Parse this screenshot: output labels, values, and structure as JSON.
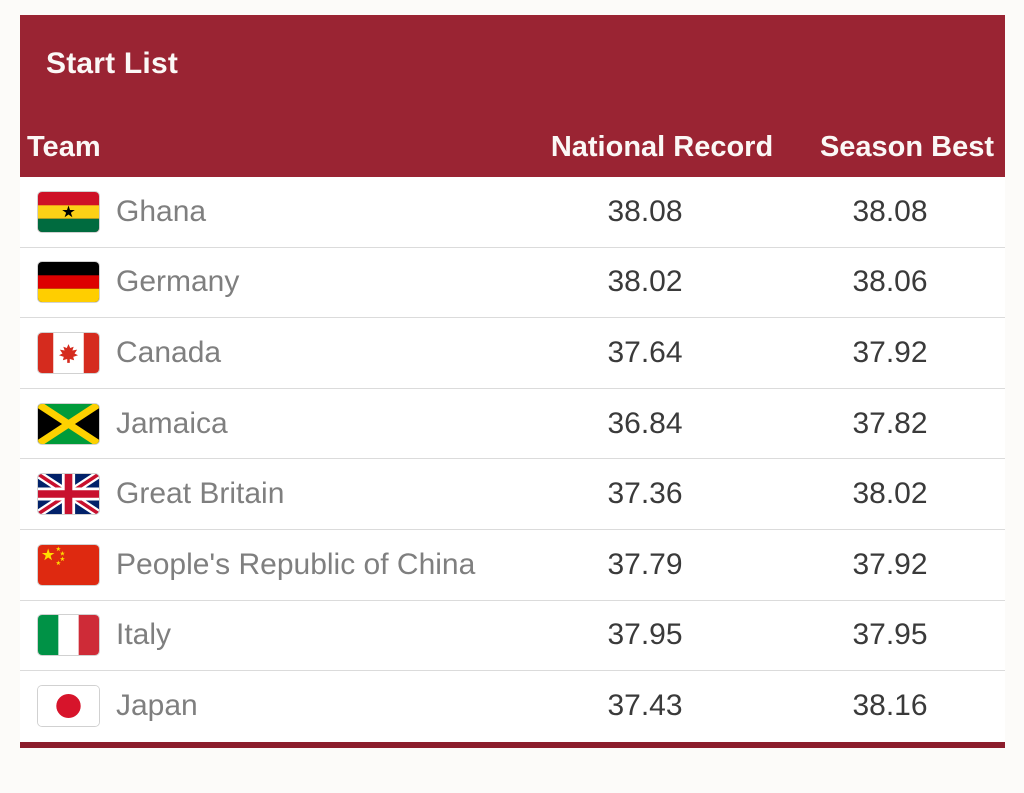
{
  "colors": {
    "header_maroon": "#9A2433",
    "bottom_bar_maroon": "#8C1D2C",
    "row_separator": "#DBDBDB",
    "team_text": "#7F7F7F",
    "value_text": "#3A3A3A",
    "header_text": "#FBF8F6"
  },
  "header": {
    "title": "Start List"
  },
  "table": {
    "columns": [
      "Team",
      "National Record",
      "Season Best"
    ],
    "rows": [
      {
        "team": "Ghana",
        "flag": "gh",
        "flag_icon": "flag-gh-icon",
        "national_record": "38.08",
        "season_best": "38.08"
      },
      {
        "team": "Germany",
        "flag": "de",
        "flag_icon": "flag-de-icon",
        "national_record": "38.02",
        "season_best": "38.06"
      },
      {
        "team": "Canada",
        "flag": "ca",
        "flag_icon": "flag-ca-icon",
        "national_record": "37.64",
        "season_best": "37.92"
      },
      {
        "team": "Jamaica",
        "flag": "jm",
        "flag_icon": "flag-jm-icon",
        "national_record": "36.84",
        "season_best": "37.82"
      },
      {
        "team": "Great Britain",
        "flag": "gb",
        "flag_icon": "flag-gb-icon",
        "national_record": "37.36",
        "season_best": "38.02"
      },
      {
        "team": "People's Republic of China",
        "flag": "cn",
        "flag_icon": "flag-cn-icon",
        "national_record": "37.79",
        "season_best": "37.92"
      },
      {
        "team": "Italy",
        "flag": "it",
        "flag_icon": "flag-it-icon",
        "national_record": "37.95",
        "season_best": "37.95"
      },
      {
        "team": "Japan",
        "flag": "jp",
        "flag_icon": "flag-jp-icon",
        "national_record": "37.43",
        "season_best": "38.16"
      }
    ]
  }
}
